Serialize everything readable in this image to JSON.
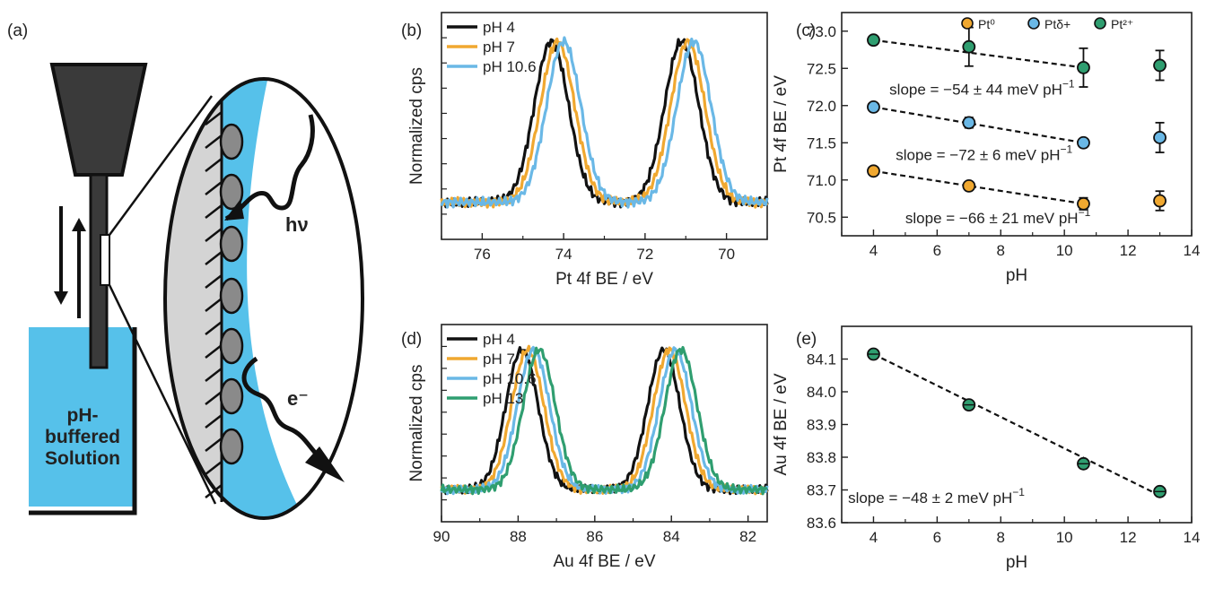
{
  "figure": {
    "panel_labels": [
      "(a)",
      "(b)",
      "(c)",
      "(d)",
      "(e)"
    ]
  },
  "schematic": {
    "photon_label": "hν",
    "electron_label": "e⁻",
    "solution_label": [
      "pH-",
      "buffered",
      "Solution"
    ],
    "colors": {
      "solution": "#56c1ea",
      "cone": "#3a3a3a",
      "sample": "#222222",
      "particle": "#8a8a8a",
      "pane": "#d4d4d4"
    }
  },
  "chart_data": [
    {
      "panel": "b",
      "type": "line",
      "xlabel": "Pt 4f BE / eV",
      "ylabel": "Normalized cps",
      "xlim": [
        77,
        69
      ],
      "ylim": [
        0,
        1.1
      ],
      "xticks": [
        76,
        74,
        72,
        70
      ],
      "x_reversed": true,
      "legend_position": "top-left",
      "peaks_x": [
        74.3,
        71.1
      ],
      "series": [
        {
          "name": "pH 4",
          "color": "#111111",
          "shift": 0.0
        },
        {
          "name": "pH 7",
          "color": "#f0a830",
          "shift": -0.15
        },
        {
          "name": "pH 10.6",
          "color": "#6ab8e6",
          "shift": -0.3
        }
      ]
    },
    {
      "panel": "d",
      "type": "line",
      "xlabel": "Au 4f BE / eV",
      "ylabel": "Normalized cps",
      "xlim": [
        90,
        81.5
      ],
      "ylim": [
        0,
        1.1
      ],
      "xticks": [
        90,
        88,
        86,
        84,
        82
      ],
      "x_reversed": true,
      "legend_position": "top-left",
      "peaks_x": [
        87.9,
        84.2
      ],
      "series": [
        {
          "name": "pH 4",
          "color": "#111111",
          "shift": 0.0
        },
        {
          "name": "pH 7",
          "color": "#f0a830",
          "shift": -0.15
        },
        {
          "name": "pH 10.6",
          "color": "#6ab8e6",
          "shift": -0.3
        },
        {
          "name": "pH 13",
          "color": "#2f9e70",
          "shift": -0.45
        }
      ]
    },
    {
      "panel": "c",
      "type": "scatter",
      "xlabel": "pH",
      "ylabel": "Pt 4f BE / eV",
      "xlim": [
        3,
        14
      ],
      "ylim": [
        70.25,
        73.25
      ],
      "xticks": [
        4,
        6,
        8,
        10,
        12,
        14
      ],
      "yticks": [
        70.5,
        71.0,
        71.5,
        72.0,
        72.5,
        73.0
      ],
      "ytick_labels": [
        "70.5",
        "71.0",
        "71.5",
        "72.0",
        "72.5",
        "73.0"
      ],
      "legend_position": "top",
      "series": [
        {
          "name": "Pt⁰",
          "color": "#f0a830",
          "x": [
            4,
            7,
            10.6,
            13
          ],
          "y": [
            71.12,
            70.92,
            70.68,
            70.72
          ],
          "err": [
            0.04,
            0.04,
            0.08,
            0.13
          ]
        },
        {
          "name": "Ptδ+",
          "color": "#6ab8e6",
          "x": [
            4,
            7,
            10.6,
            13
          ],
          "y": [
            71.98,
            71.77,
            71.5,
            71.57
          ],
          "err": [
            0.04,
            0.07,
            0.03,
            0.2
          ]
        },
        {
          "name": "Pt²⁺",
          "color": "#2f9e70",
          "x": [
            4,
            7,
            10.6,
            13
          ],
          "y": [
            72.88,
            72.79,
            72.51,
            72.54
          ],
          "err": [
            0.04,
            0.26,
            0.26,
            0.2
          ]
        }
      ],
      "fits": [
        {
          "x": [
            4,
            10.6
          ],
          "y": [
            72.88,
            72.51
          ]
        },
        {
          "x": [
            4,
            10.6
          ],
          "y": [
            71.98,
            71.5
          ]
        },
        {
          "x": [
            4,
            10.6
          ],
          "y": [
            71.12,
            70.68
          ]
        }
      ],
      "annotations": [
        {
          "text": "slope = −54 ± 44 meV pH",
          "sup": "−1",
          "x": 4.5,
          "y": 72.15
        },
        {
          "text": "slope = −72 ± 6 meV pH",
          "sup": "−1",
          "x": 4.7,
          "y": 71.27
        },
        {
          "text": "slope = −66 ± 21 meV pH",
          "sup": "−1",
          "x": 5.0,
          "y": 70.42
        }
      ]
    },
    {
      "panel": "e",
      "type": "scatter",
      "xlabel": "pH",
      "ylabel": "Au 4f BE / eV",
      "xlim": [
        3,
        14
      ],
      "ylim": [
        83.6,
        84.2
      ],
      "xticks": [
        4,
        6,
        8,
        10,
        12,
        14
      ],
      "yticks": [
        83.6,
        83.7,
        83.8,
        83.9,
        84.0,
        84.1
      ],
      "ytick_labels": [
        "83.6",
        "83.7",
        "83.8",
        "83.9",
        "84.0",
        "84.1"
      ],
      "series": [
        {
          "name": "",
          "color": "#2f9e70",
          "x": [
            4,
            7,
            10.6,
            13
          ],
          "y": [
            84.115,
            83.96,
            83.78,
            83.695
          ],
          "err": [
            0.004,
            0.004,
            0.004,
            0.004
          ]
        }
      ],
      "fits": [
        {
          "x": [
            4,
            13
          ],
          "y": [
            84.115,
            83.683
          ]
        }
      ],
      "annotations": [
        {
          "text": "slope = −48 ± 2 meV pH",
          "sup": "−1",
          "x": 3.2,
          "y": 83.66
        }
      ]
    }
  ]
}
